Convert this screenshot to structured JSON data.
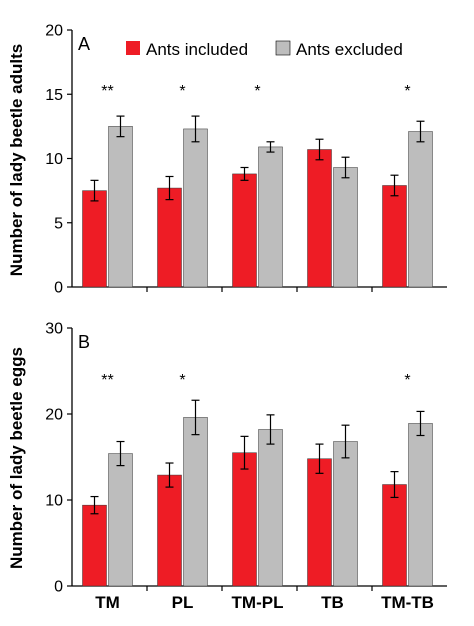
{
  "colors": {
    "included": "#ee1c25",
    "excluded": "#bdbdbd",
    "axis": "#000000"
  },
  "legend": {
    "included_label": "Ants included",
    "excluded_label": "Ants excluded"
  },
  "chart_data": [
    {
      "type": "bar",
      "panel_label": "A",
      "ylabel": "Number of lady beetle adults",
      "ylim": [
        0,
        20
      ],
      "yticks": [
        0,
        5,
        10,
        15,
        20
      ],
      "categories": [
        "TM",
        "PL",
        "TM-PL",
        "TB",
        "TM-TB"
      ],
      "show_category_labels": false,
      "legend_placement": "top",
      "series": [
        {
          "name": "Ants included",
          "values": [
            7.5,
            7.7,
            8.8,
            10.7,
            7.9
          ],
          "errors": [
            0.8,
            0.9,
            0.5,
            0.8,
            0.8
          ]
        },
        {
          "name": "Ants excluded",
          "values": [
            12.5,
            12.3,
            10.9,
            9.3,
            12.1
          ],
          "errors": [
            0.8,
            1.0,
            0.4,
            0.8,
            0.8
          ]
        }
      ],
      "significance": [
        "**",
        "*",
        "*",
        "",
        "*"
      ]
    },
    {
      "type": "bar",
      "panel_label": "B",
      "ylabel": "Number of lady beetle eggs",
      "ylim": [
        0,
        30
      ],
      "yticks": [
        0,
        10,
        20,
        30
      ],
      "categories": [
        "TM",
        "PL",
        "TM-PL",
        "TB",
        "TM-TB"
      ],
      "show_category_labels": true,
      "series": [
        {
          "name": "Ants included",
          "values": [
            9.4,
            12.9,
            15.5,
            14.8,
            11.8
          ],
          "errors": [
            1.0,
            1.4,
            1.9,
            1.7,
            1.5
          ]
        },
        {
          "name": "Ants excluded",
          "values": [
            15.4,
            19.6,
            18.2,
            16.8,
            18.9
          ],
          "errors": [
            1.4,
            2.0,
            1.7,
            1.9,
            1.4
          ]
        }
      ],
      "significance": [
        "**",
        "*",
        "",
        "",
        "*"
      ]
    }
  ]
}
